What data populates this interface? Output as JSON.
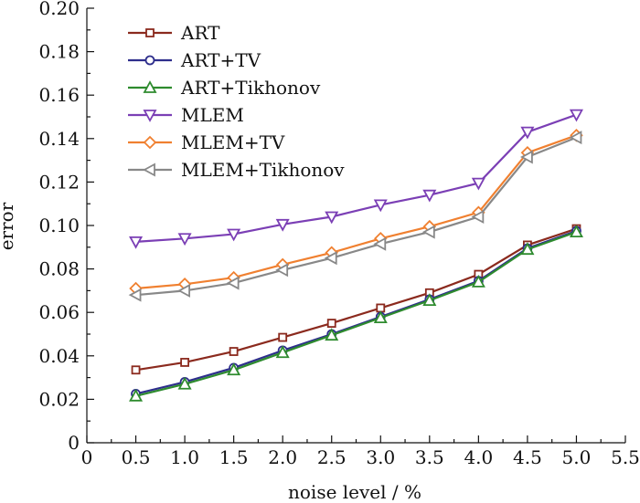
{
  "chart_data": {
    "type": "line",
    "title": "",
    "xlabel": "noise level / %",
    "ylabel": "error",
    "xlim": [
      0,
      5.5
    ],
    "ylim": [
      0,
      0.2
    ],
    "grid": false,
    "legend_position": "top-left",
    "x_ticks": [
      "0",
      "0.5",
      "1.0",
      "1.5",
      "2.0",
      "2.5",
      "3.0",
      "3.5",
      "4.0",
      "4.5",
      "5.0",
      "5.5"
    ],
    "y_ticks": [
      "0",
      "0.02",
      "0.04",
      "0.06",
      "0.08",
      "0.10",
      "0.12",
      "0.14",
      "0.16",
      "0.18",
      "0.20"
    ],
    "x": [
      0.5,
      1.0,
      1.5,
      2.0,
      2.5,
      3.0,
      3.5,
      4.0,
      4.5,
      5.0
    ],
    "series": [
      {
        "name": "ART",
        "marker": "square",
        "color": "#8B2A1E",
        "values": [
          0.0335,
          0.037,
          0.042,
          0.0485,
          0.055,
          0.062,
          0.069,
          0.0775,
          0.091,
          0.0985
        ]
      },
      {
        "name": "ART+TV",
        "marker": "circle",
        "color": "#2E2E8C",
        "values": [
          0.0225,
          0.028,
          0.0345,
          0.0425,
          0.05,
          0.058,
          0.066,
          0.0745,
          0.0895,
          0.0975
        ]
      },
      {
        "name": "ART+Tikhonov",
        "marker": "triangle-up",
        "color": "#2E8B2E",
        "values": [
          0.0215,
          0.027,
          0.0335,
          0.0415,
          0.0495,
          0.0575,
          0.0655,
          0.074,
          0.089,
          0.097
        ]
      },
      {
        "name": "MLEM",
        "marker": "triangle-down",
        "color": "#7B3FB5",
        "values": [
          0.0925,
          0.094,
          0.096,
          0.1005,
          0.104,
          0.1095,
          0.114,
          0.1195,
          0.143,
          0.151
        ]
      },
      {
        "name": "MLEM+TV",
        "marker": "diamond",
        "color": "#F08030",
        "values": [
          0.071,
          0.073,
          0.076,
          0.082,
          0.0875,
          0.094,
          0.0995,
          0.106,
          0.1335,
          0.1415
        ]
      },
      {
        "name": "MLEM+Tikhonov",
        "marker": "triangle-left",
        "color": "#888888",
        "values": [
          0.068,
          0.07,
          0.0735,
          0.0795,
          0.085,
          0.0915,
          0.097,
          0.104,
          0.1315,
          0.1405
        ]
      }
    ]
  }
}
